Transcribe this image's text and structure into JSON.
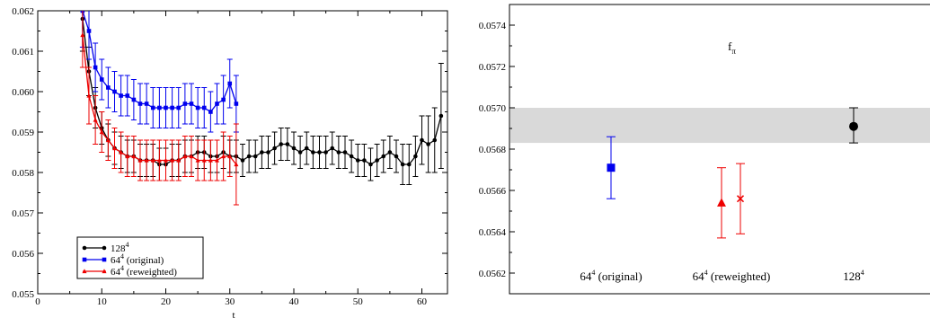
{
  "chart_data": [
    {
      "type": "line",
      "xlabel": "t",
      "ylabel": "",
      "xlim": [
        0,
        64
      ],
      "ylim": [
        0.055,
        0.062
      ],
      "x_ticks": [
        "0",
        "10",
        "20",
        "30",
        "40",
        "50",
        "60"
      ],
      "y_ticks": [
        "0.055",
        "0.056",
        "0.057",
        "0.058",
        "0.059",
        "0.060",
        "0.061",
        "0.062"
      ],
      "legend_position": "bottom-left",
      "series": [
        {
          "name": "128",
          "name_sup": "4",
          "color": "#000000",
          "marker": "circle",
          "x": [
            7,
            8,
            9,
            10,
            11,
            12,
            13,
            14,
            15,
            16,
            17,
            18,
            19,
            20,
            21,
            22,
            23,
            24,
            25,
            26,
            27,
            28,
            29,
            30,
            31,
            32,
            33,
            34,
            35,
            36,
            37,
            38,
            39,
            40,
            41,
            42,
            43,
            44,
            45,
            46,
            47,
            48,
            49,
            50,
            51,
            52,
            53,
            54,
            55,
            56,
            57,
            58,
            59,
            60,
            61,
            62,
            63
          ],
          "y": [
            0.0618,
            0.0605,
            0.0596,
            0.0591,
            0.0588,
            0.0586,
            0.0585,
            0.0584,
            0.0584,
            0.0583,
            0.0583,
            0.0583,
            0.0582,
            0.0582,
            0.0583,
            0.0583,
            0.0584,
            0.0584,
            0.0585,
            0.0585,
            0.0584,
            0.0584,
            0.0585,
            0.0584,
            0.0584,
            0.0583,
            0.0584,
            0.0584,
            0.0585,
            0.0585,
            0.0586,
            0.0587,
            0.0587,
            0.0586,
            0.0585,
            0.0586,
            0.0585,
            0.0585,
            0.0585,
            0.0586,
            0.0585,
            0.0585,
            0.0584,
            0.0583,
            0.0583,
            0.0582,
            0.0583,
            0.0584,
            0.0585,
            0.0584,
            0.0582,
            0.0582,
            0.0584,
            0.0588,
            0.0587,
            0.0588,
            0.0594
          ],
          "err": [
            0.0008,
            0.0006,
            0.0005,
            0.0004,
            0.0004,
            0.0004,
            0.0004,
            0.0004,
            0.0004,
            0.0004,
            0.0004,
            0.0004,
            0.0004,
            0.0004,
            0.0004,
            0.0004,
            0.0004,
            0.0004,
            0.0004,
            0.0004,
            0.0004,
            0.0004,
            0.0004,
            0.0004,
            0.0004,
            0.0004,
            0.0004,
            0.0004,
            0.0004,
            0.0004,
            0.0004,
            0.0004,
            0.0004,
            0.0004,
            0.0004,
            0.0004,
            0.0004,
            0.0004,
            0.0004,
            0.0004,
            0.0004,
            0.0004,
            0.0004,
            0.0004,
            0.0004,
            0.0004,
            0.0004,
            0.0004,
            0.0004,
            0.0004,
            0.0005,
            0.0005,
            0.0005,
            0.0006,
            0.0007,
            0.0008,
            0.0013
          ]
        },
        {
          "name": "64",
          "name_sup": "4",
          "name_suffix": "(original)",
          "color": "#0000ee",
          "marker": "square",
          "x": [
            7,
            8,
            9,
            10,
            11,
            12,
            13,
            14,
            15,
            16,
            17,
            18,
            19,
            20,
            21,
            22,
            23,
            24,
            25,
            26,
            27,
            28,
            29,
            30,
            31
          ],
          "y": [
            0.062,
            0.0615,
            0.0606,
            0.0603,
            0.0601,
            0.06,
            0.0599,
            0.0599,
            0.0598,
            0.0597,
            0.0597,
            0.0596,
            0.0596,
            0.0596,
            0.0596,
            0.0596,
            0.0597,
            0.0597,
            0.0596,
            0.0596,
            0.0595,
            0.0597,
            0.0598,
            0.0602,
            0.0597
          ],
          "err": [
            0.0009,
            0.0007,
            0.0006,
            0.0005,
            0.0005,
            0.0005,
            0.0005,
            0.0005,
            0.0005,
            0.0005,
            0.0005,
            0.0005,
            0.0005,
            0.0005,
            0.0005,
            0.0005,
            0.0005,
            0.0005,
            0.0005,
            0.0005,
            0.0005,
            0.0005,
            0.0006,
            0.0006,
            0.0007
          ]
        },
        {
          "name": "64",
          "name_sup": "4",
          "name_suffix": "(reweighted)",
          "color": "#ee0000",
          "marker": "triangle",
          "x": [
            7,
            8,
            9,
            10,
            11,
            12,
            13,
            14,
            15,
            16,
            17,
            18,
            19,
            20,
            21,
            22,
            23,
            24,
            25,
            26,
            27,
            28,
            29,
            30,
            31
          ],
          "y": [
            0.0614,
            0.0599,
            0.0593,
            0.059,
            0.0588,
            0.0586,
            0.0585,
            0.0584,
            0.0584,
            0.0583,
            0.0583,
            0.0583,
            0.0583,
            0.0583,
            0.0583,
            0.0583,
            0.0584,
            0.0584,
            0.0583,
            0.0583,
            0.0583,
            0.0583,
            0.0584,
            0.0584,
            0.0582
          ],
          "err": [
            0.0008,
            0.0007,
            0.0006,
            0.0005,
            0.0005,
            0.0005,
            0.0005,
            0.0005,
            0.0005,
            0.0005,
            0.0005,
            0.0005,
            0.0005,
            0.0005,
            0.0005,
            0.0005,
            0.0005,
            0.0005,
            0.0005,
            0.0005,
            0.0005,
            0.0005,
            0.0006,
            0.0005,
            0.001
          ]
        }
      ]
    },
    {
      "type": "scatter",
      "title": "f",
      "title_sub": "π",
      "ylim": [
        0.0561,
        0.0575
      ],
      "y_ticks": [
        "0.0562",
        "0.0564",
        "0.0566",
        "0.0568",
        "0.0570",
        "0.0572",
        "0.0574"
      ],
      "band": {
        "low": 0.05683,
        "high": 0.057,
        "color": "#d9d9d9"
      },
      "categories": [
        {
          "base": "64",
          "sup": "4",
          "suffix": "(original)"
        },
        {
          "base": "64",
          "sup": "4",
          "suffix": "(reweighted)"
        },
        {
          "base": "128",
          "sup": "4",
          "suffix": ""
        }
      ],
      "points": [
        {
          "category": 0,
          "y": 0.05671,
          "err_low": 0.05656,
          "err_high": 0.05686,
          "color": "#0000ee",
          "marker": "square"
        },
        {
          "category": 1,
          "y": 0.05654,
          "err_low": 0.05637,
          "err_high": 0.05671,
          "color": "#ee0000",
          "marker": "triangle"
        },
        {
          "category": 1,
          "y": 0.05656,
          "err_low": 0.05639,
          "err_high": 0.05673,
          "color": "#ee0000",
          "marker": "cross"
        },
        {
          "category": 2,
          "y": 0.05691,
          "err_low": 0.05683,
          "err_high": 0.057,
          "color": "#000000",
          "marker": "circle"
        }
      ]
    }
  ]
}
